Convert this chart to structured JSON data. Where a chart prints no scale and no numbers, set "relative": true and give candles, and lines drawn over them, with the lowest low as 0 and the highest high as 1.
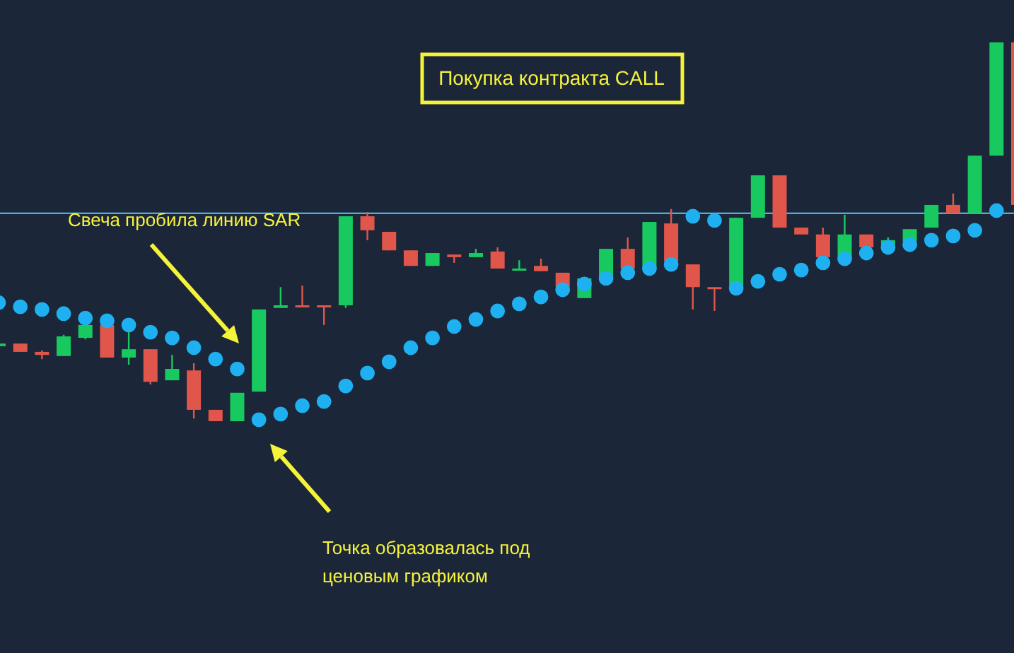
{
  "chart_data": {
    "type": "candlestick",
    "relative": true,
    "categories": [
      null,
      null,
      null,
      null,
      null,
      null,
      null,
      null,
      null,
      null,
      null,
      null,
      null,
      null,
      null,
      null,
      null,
      null,
      null,
      null,
      null,
      null,
      null,
      null,
      null,
      null,
      null,
      null,
      null,
      null,
      null,
      null,
      null,
      null,
      null,
      null,
      null,
      null,
      null,
      null,
      null,
      null,
      null,
      null,
      null,
      null,
      null,
      null
    ],
    "series": [
      {
        "ohlc": [
          [
            0.198,
            0.216,
            0.187,
            0.205
          ],
          [
            0.205,
            0.205,
            0.183,
            0.183
          ],
          [
            0.183,
            0.187,
            0.164,
            0.175
          ],
          [
            0.172,
            0.228,
            0.172,
            0.224
          ],
          [
            0.22,
            0.261,
            0.216,
            0.254
          ],
          [
            0.254,
            0.254,
            0.168,
            0.168
          ],
          [
            0.168,
            0.235,
            0.149,
            0.19
          ],
          [
            0.19,
            0.19,
            0.097,
            0.104
          ],
          [
            0.108,
            0.175,
            0.108,
            0.138
          ],
          [
            0.134,
            0.153,
            0.007,
            0.03
          ],
          [
            0.03,
            0.03,
            0,
            0
          ],
          [
            0,
            0.075,
            0,
            0.075
          ],
          [
            0.078,
            0.295,
            0.078,
            0.295
          ],
          [
            0.299,
            0.354,
            0.299,
            0.306
          ],
          [
            0.306,
            0.358,
            0.302,
            0.302
          ],
          [
            0.306,
            0.306,
            0.254,
            0.302
          ],
          [
            0.306,
            0.541,
            0.299,
            0.541
          ],
          [
            0.541,
            0.552,
            0.478,
            0.504
          ],
          [
            0.5,
            0.5,
            0.451,
            0.451
          ],
          [
            0.451,
            0.451,
            0.41,
            0.41
          ],
          [
            0.41,
            0.444,
            0.41,
            0.444
          ],
          [
            0.44,
            0.44,
            0.418,
            0.433
          ],
          [
            0.433,
            0.455,
            0.433,
            0.444
          ],
          [
            0.448,
            0.459,
            0.403,
            0.403
          ],
          [
            0.399,
            0.425,
            0.399,
            0.403
          ],
          [
            0.41,
            0.429,
            0.396,
            0.396
          ],
          [
            0.392,
            0.392,
            0.354,
            0.354
          ],
          [
            0.325,
            0.377,
            0.325,
            0.377
          ],
          [
            0.381,
            0.455,
            0.381,
            0.455
          ],
          [
            0.455,
            0.485,
            0.403,
            0.403
          ],
          [
            0.403,
            0.526,
            0.403,
            0.526
          ],
          [
            0.522,
            0.56,
            0.422,
            0.422
          ],
          [
            0.414,
            0.414,
            0.295,
            0.354
          ],
          [
            0.354,
            0.354,
            0.291,
            0.351
          ],
          [
            0.358,
            0.537,
            0.358,
            0.537
          ],
          [
            0.537,
            0.649,
            0.537,
            0.649
          ],
          [
            0.649,
            0.649,
            0.511,
            0.511
          ],
          [
            0.511,
            0.511,
            0.493,
            0.493
          ],
          [
            0.493,
            0.511,
            0.433,
            0.433
          ],
          [
            0.433,
            0.545,
            0.433,
            0.493
          ],
          [
            0.493,
            0.493,
            0.459,
            0.459
          ],
          [
            0.466,
            0.485,
            0.466,
            0.478
          ],
          [
            0.474,
            0.507,
            0.474,
            0.507
          ],
          [
            0.511,
            0.571,
            0.511,
            0.571
          ],
          [
            0.571,
            0.601,
            0.549,
            0.549
          ],
          [
            0.549,
            0.701,
            0.549,
            0.701
          ],
          [
            0.701,
            1,
            0.701,
            1
          ],
          [
            1,
            1,
            0.571,
            0.571
          ]
        ],
        "colors": [
          "#18c95f",
          "#e0564a",
          "#e0564a",
          "#18c95f",
          "#18c95f",
          "#e0564a",
          "#18c95f",
          "#e0564a",
          "#18c95f",
          "#e0564a",
          "#e0564a",
          "#18c95f",
          "#18c95f",
          "#18c95f",
          "#e0564a",
          "#e0564a",
          "#18c95f",
          "#e0564a",
          "#e0564a",
          "#e0564a",
          "#18c95f",
          "#e0564a",
          "#18c95f",
          "#e0564a",
          "#18c95f",
          "#e0564a",
          "#e0564a",
          "#18c95f",
          "#18c95f",
          "#e0564a",
          "#18c95f",
          "#e0564a",
          "#e0564a",
          "#e0564a",
          "#18c95f",
          "#18c95f",
          "#e0564a",
          "#e0564a",
          "#e0564a",
          "#18c95f",
          "#e0564a",
          "#18c95f",
          "#18c95f",
          "#18c95f",
          "#e0564a",
          "#18c95f",
          "#18c95f",
          "#e0564a"
        ]
      },
      {
        "type": "scatter",
        "marker": "circle",
        "color": "#1eb0f0",
        "values": [
          0.313,
          0.302,
          0.295,
          0.284,
          0.272,
          0.265,
          0.254,
          0.235,
          0.22,
          0.194,
          0.164,
          0.138,
          0.004,
          0.019,
          0.041,
          0.052,
          0.093,
          0.127,
          0.157,
          0.194,
          0.22,
          0.25,
          0.269,
          0.291,
          0.31,
          0.328,
          0.347,
          0.362,
          0.377,
          0.392,
          0.403,
          0.414,
          0.541,
          0.53,
          0.351,
          0.369,
          0.388,
          0.399,
          0.418,
          0.429,
          0.444,
          0.459,
          0.466,
          0.478,
          0.489,
          0.504,
          0.556,
          null
        ]
      }
    ],
    "ref_lines": [
      {
        "axis": "y",
        "value": 0.549,
        "color": "#5cc4f2"
      }
    ],
    "annotations": [
      "Покупка контракта CALL",
      "Свеча пробила линию SAR",
      "Точка образовалась под ценовым графиком"
    ]
  }
}
